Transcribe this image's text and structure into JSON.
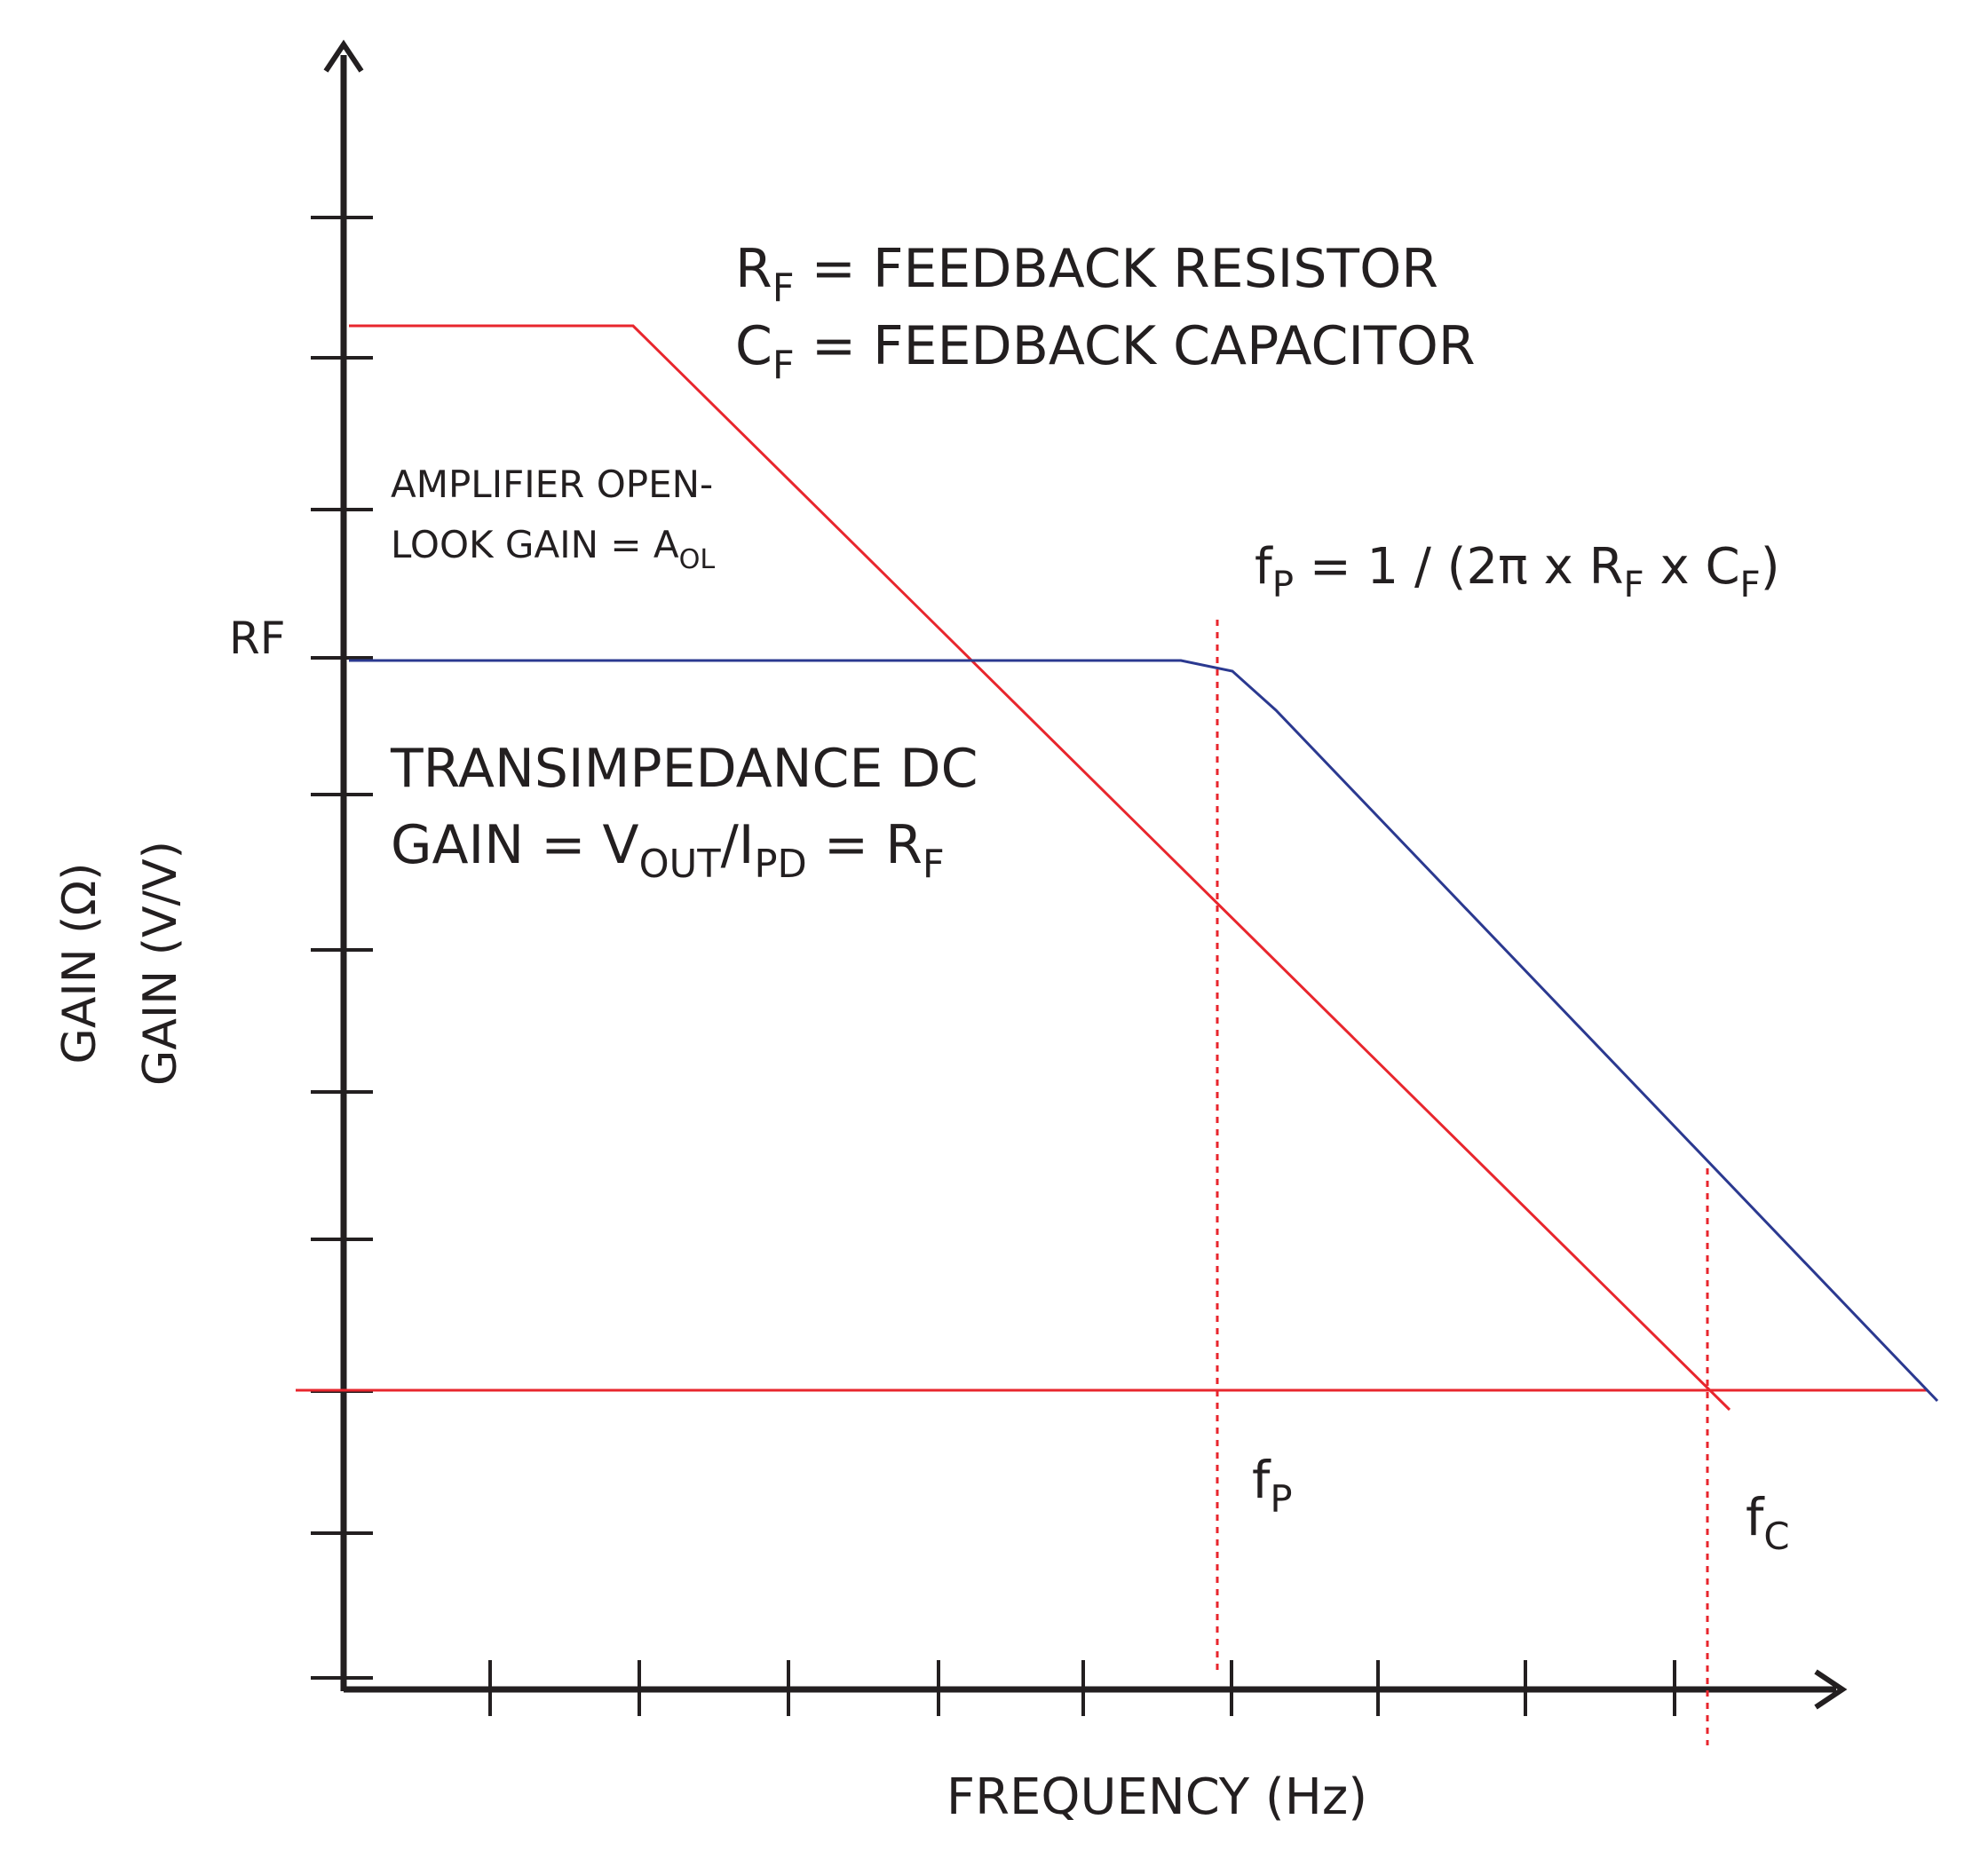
{
  "axes": {
    "y_title_1": "GAIN (Ω)",
    "y_title_2": "GAIN (V/V)",
    "x_title": "FREQUENCY (Hz)",
    "rf_marker": "RF",
    "y_ticks": 11,
    "x_ticks": 9
  },
  "legend": {
    "rf_main": "R",
    "rf_sub": "F",
    "rf_text": " = FEEDBACK RESISTOR",
    "cf_main": "C",
    "cf_sub": "F",
    "cf_text": " = FEEDBACK CAPACITOR"
  },
  "aol_label": {
    "line1": "AMPLIFIER OPEN-",
    "line2_main": "LOOK GAIN = A",
    "line2_sub": "OL"
  },
  "dc_gain_label": {
    "line1": "TRANSIMPEDANCE DC",
    "line2_a": "GAIN = V",
    "line2_sub1": "OUT",
    "line2_b": "/I",
    "line2_sub2": "PD",
    "line2_c": " = R",
    "line2_sub3": "F"
  },
  "formula": {
    "f": "f",
    "p_sub": "P",
    "mid": " = 1 / (2π x R",
    "rf_sub": "F",
    "x": " x C",
    "cf_sub": "F",
    "end": ")"
  },
  "markers": {
    "fp_main": "f",
    "fp_sub": "P",
    "fc_main": "f",
    "fc_sub": "C"
  },
  "colors": {
    "axis": "#231f20",
    "red": "#e8262d",
    "blue": "#2b3990",
    "text": "#231f20"
  }
}
